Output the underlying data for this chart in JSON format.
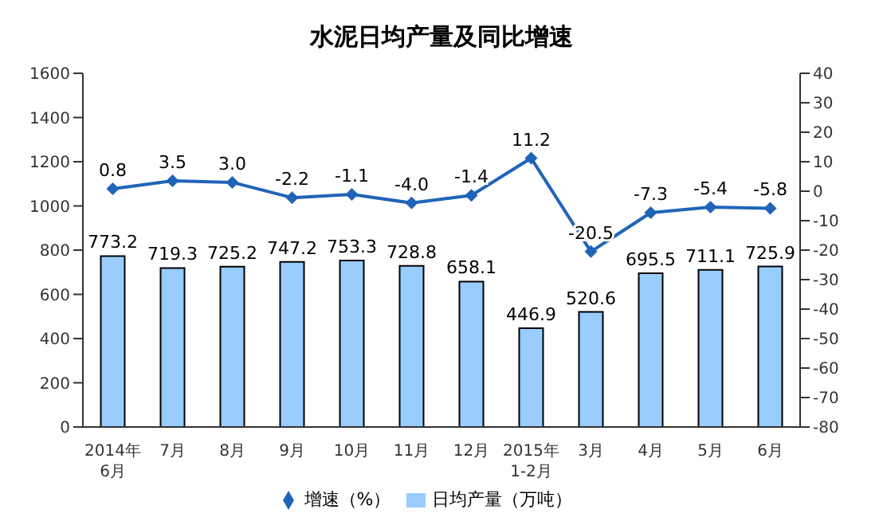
{
  "chart_data": {
    "type": "bar",
    "title": "水泥日均产量及同比增速",
    "categories": [
      "2014年\n6月",
      "7月",
      "8月",
      "9月",
      "10月",
      "11月",
      "12月",
      "2015年\n1-2月",
      "3月",
      "4月",
      "5月",
      "6月"
    ],
    "series": [
      {
        "name": "日均产量（万吨）",
        "color": "#99ccff",
        "values": [
          773.2,
          719.3,
          725.2,
          747.2,
          753.3,
          728.8,
          658.1,
          446.9,
          520.6,
          695.5,
          711.1,
          725.9
        ],
        "value_labels": [
          "773.2",
          "719.3",
          "725.2",
          "747.2",
          "753.3",
          "728.8",
          "658.1",
          "446.9",
          "520.6",
          "695.5",
          "711.1",
          "725.9"
        ]
      },
      {
        "name": "增速（%）",
        "type": "line",
        "axis": "y2",
        "color": "#1f64b8",
        "values": [
          0.8,
          3.5,
          3.0,
          -2.2,
          -1.1,
          -4.0,
          -1.4,
          11.2,
          -20.5,
          -7.3,
          -5.4,
          -5.8
        ],
        "value_labels": [
          "0.8",
          "3.5",
          "3.0",
          "-2.2",
          "-1.1",
          "-4.0",
          "-1.4",
          "11.2",
          "-20.5",
          "-7.3",
          "-5.4",
          "-5.8"
        ]
      }
    ],
    "ylim": [
      0,
      1600
    ],
    "yticks": [
      0,
      200,
      400,
      600,
      800,
      1000,
      1200,
      1400,
      1600
    ],
    "y2lim": [
      -80,
      40
    ],
    "y2ticks": [
      -80,
      -70,
      -60,
      -50,
      -40,
      -30,
      -20,
      -10,
      0,
      10,
      20,
      30,
      40
    ],
    "grid": false,
    "legend": "bottom",
    "marker": "diamond",
    "line_style": "solid"
  }
}
